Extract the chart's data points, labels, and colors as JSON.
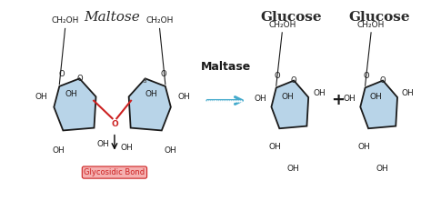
{
  "bg_color": "#ffffff",
  "title_maltose": "Maltose",
  "title_glucose1": "Glucose",
  "title_glucose2": "Glucose",
  "arrow_label": "Maltase",
  "glycosidic_label": "Glycosidic Bond",
  "ring_fill": "#b8d4e8",
  "ring_edge": "#1a1a1a",
  "o_bond_color": "#cc2222",
  "arrow_color": "#44aacc",
  "glycosidic_box_color": "#f5b0b0",
  "glycosidic_text_color": "#cc2222",
  "label_color": "#1a1a1a",
  "title_color": "#2a2a2a",
  "title_fontsize": 11,
  "label_fontsize": 6.5,
  "arrow_fontsize": 9
}
